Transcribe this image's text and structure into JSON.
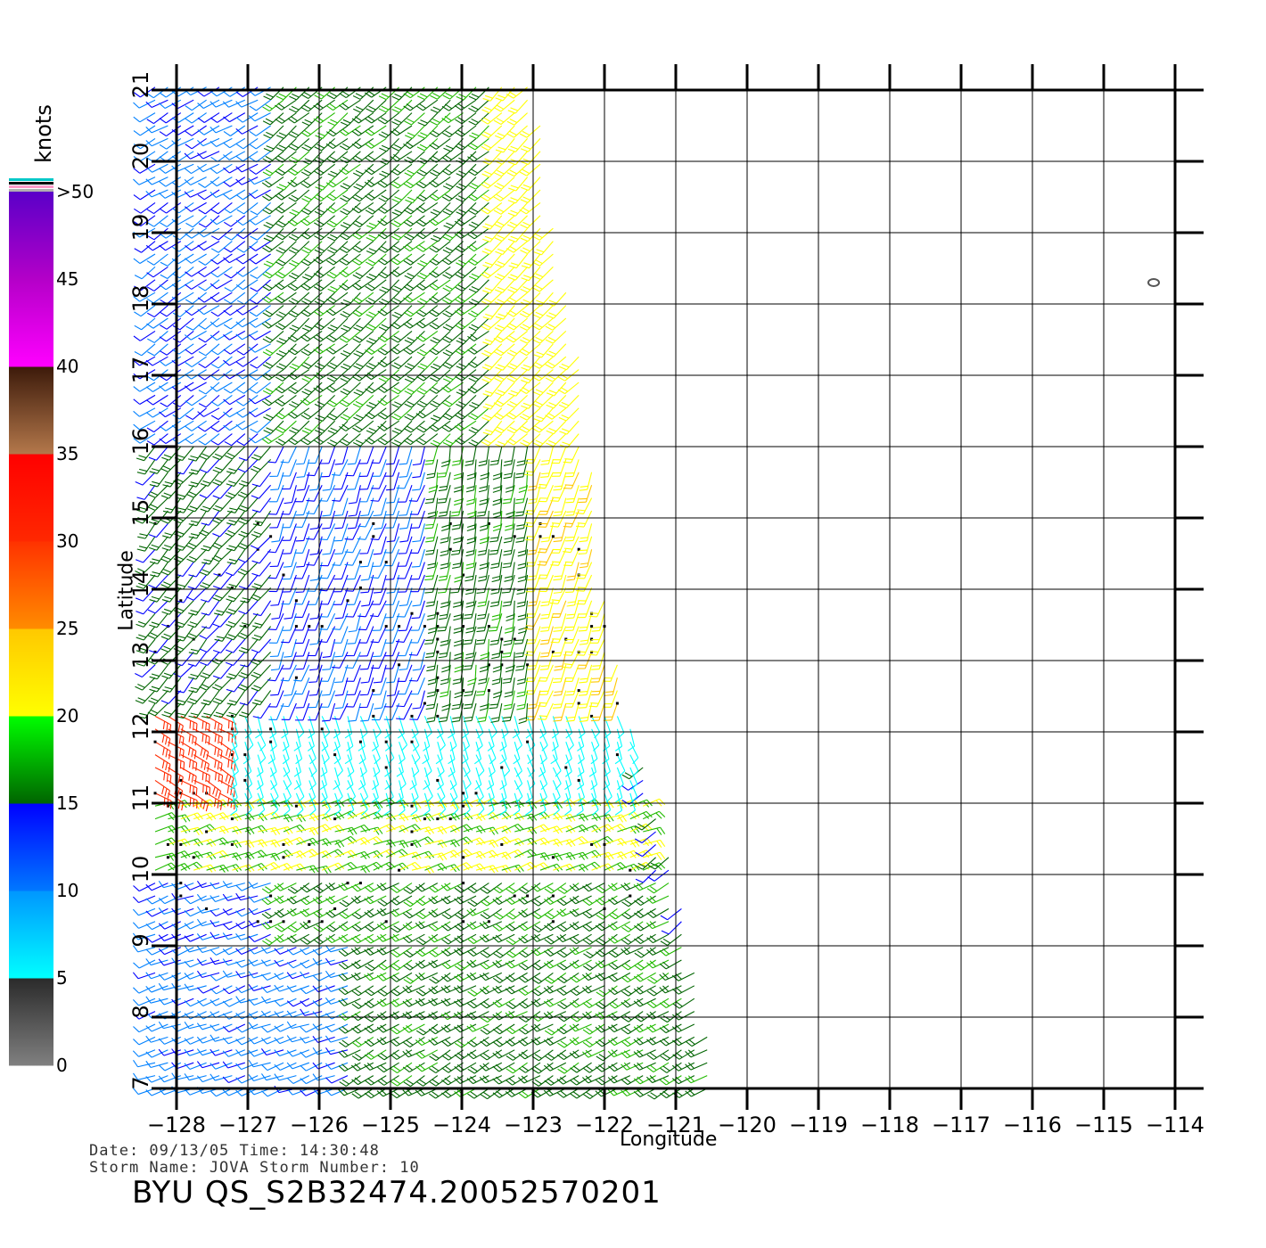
{
  "info": {
    "date_line": "Date:  09/13/05   Time:  14:30:48",
    "storm_line": "Storm  Name:  JOVA   Storm  Number:  10",
    "file_title": "BYU  QS_S2B32474.20052570201"
  },
  "chart_data": {
    "type": "wind barb map",
    "title": "BYU  QS_S2B32474.20052570201",
    "xlabel": "Longitude",
    "ylabel": "Latitude",
    "xlim": [
      -128,
      -114
    ],
    "ylim": [
      7,
      21
    ],
    "x_ticks": [
      "−128",
      "−127",
      "−126",
      "−125",
      "−124",
      "−123",
      "−122",
      "−121",
      "−120",
      "−119",
      "−118",
      "−117",
      "−116",
      "−115",
      "−114"
    ],
    "y_ticks": [
      "7",
      "8",
      "9",
      "10",
      "11",
      "12",
      "13",
      "14",
      "15",
      "16",
      "17",
      "18",
      "19",
      "20",
      "21"
    ],
    "grid": true,
    "land_marker": {
      "lon": -114.3,
      "lat": 18.3
    },
    "colorbar": {
      "units": "knots",
      "labels": [
        "0",
        "5",
        "10",
        "15",
        "20",
        "25",
        "30",
        "35",
        "40",
        "45",
        ">50"
      ],
      "bins": [
        {
          "range": [
            0,
            5
          ],
          "colors": [
            "#808080",
            "#2a2a2a"
          ]
        },
        {
          "range": [
            5,
            10
          ],
          "colors": [
            "#00ffff",
            "#0096ff"
          ]
        },
        {
          "range": [
            10,
            15
          ],
          "colors": [
            "#0078ff",
            "#0000ff"
          ]
        },
        {
          "range": [
            15,
            20
          ],
          "colors": [
            "#006400",
            "#00ff00"
          ]
        },
        {
          "range": [
            20,
            25
          ],
          "colors": [
            "#ffff00",
            "#ffc800"
          ]
        },
        {
          "range": [
            25,
            30
          ],
          "colors": [
            "#ff8c00",
            "#ff3200"
          ]
        },
        {
          "range": [
            30,
            35
          ],
          "colors": [
            "#ff2800",
            "#ff0000"
          ]
        },
        {
          "range": [
            35,
            40
          ],
          "colors": [
            "#b4784b",
            "#3c1a0a"
          ]
        },
        {
          "range": [
            40,
            45
          ],
          "colors": [
            "#ff00ff",
            "#b400c8"
          ]
        },
        {
          "range": [
            45,
            50
          ],
          "colors": [
            "#b400c8",
            "#5a00c8"
          ]
        }
      ]
    },
    "swath": {
      "description_free": true,
      "rows_lat_range": [
        7,
        21.2
      ],
      "east_edge": [
        [
          7.0,
          -120.4
        ],
        [
          8.0,
          -120.6
        ],
        [
          9.0,
          -120.8
        ],
        [
          10.0,
          -121.0
        ],
        [
          11.0,
          -121.3
        ],
        [
          12.0,
          -121.6
        ],
        [
          13.0,
          -121.8
        ],
        [
          14.0,
          -122.0
        ],
        [
          15.0,
          -122.1
        ],
        [
          16.0,
          -122.2
        ],
        [
          17.0,
          -122.3
        ],
        [
          18.0,
          -122.5
        ],
        [
          19.0,
          -122.7
        ],
        [
          20.0,
          -122.8
        ],
        [
          21.2,
          -123.0
        ]
      ],
      "west_edge": -128.3,
      "wind_regions": [
        {
          "lat": [
            19.5,
            21.2
          ],
          "lon": [
            -128.3,
            -126.5
          ],
          "speed": 12,
          "dir": 240
        },
        {
          "lat": [
            16,
            21.2
          ],
          "lon": [
            -126.5,
            -123.5
          ],
          "speed": 17,
          "dir": 230
        },
        {
          "lat": [
            16,
            21.2
          ],
          "lon": [
            -123.5,
            -122.2
          ],
          "speed": 22,
          "dir": 225
        },
        {
          "lat": [
            16,
            19.5
          ],
          "lon": [
            -128.3,
            -126
          ],
          "speed": 13,
          "dir": 235
        },
        {
          "lat": [
            12.3,
            16
          ],
          "lon": [
            -128.3,
            -126.5
          ],
          "speed": 16,
          "dir": 220
        },
        {
          "lat": [
            12.3,
            16
          ],
          "lon": [
            -126.5,
            -124.5
          ],
          "speed": 13,
          "dir": 200
        },
        {
          "lat": [
            12.3,
            16
          ],
          "lon": [
            -124.5,
            -123
          ],
          "speed": 17,
          "dir": 190
        },
        {
          "lat": [
            12.3,
            16
          ],
          "lon": [
            -123,
            -121.8
          ],
          "speed": 23,
          "dir": 200
        },
        {
          "lat": [
            11.1,
            12.3
          ],
          "lon": [
            -127.3,
            -121.5
          ],
          "speed": 8,
          "dir": 160
        },
        {
          "lat": [
            11.1,
            12.3
          ],
          "lon": [
            -128.3,
            -127.3
          ],
          "speed": 32,
          "dir": 120
        },
        {
          "lat": [
            10.0,
            11.1
          ],
          "lon": [
            -128.3,
            -121.3
          ],
          "speed": 20,
          "dir": 70
        },
        {
          "lat": [
            9.0,
            10.0
          ],
          "lon": [
            -128.3,
            -126.5
          ],
          "speed": 13,
          "dir": 250
        },
        {
          "lat": [
            9.0,
            10.0
          ],
          "lon": [
            -126.5,
            -121
          ],
          "speed": 18,
          "dir": 240
        },
        {
          "lat": [
            7.0,
            9.0
          ],
          "lon": [
            -128.3,
            -125.5
          ],
          "speed": 12,
          "dir": 250
        },
        {
          "lat": [
            7.0,
            9.0
          ],
          "lon": [
            -125.5,
            -120.4
          ],
          "speed": 17,
          "dir": 240
        }
      ]
    }
  }
}
